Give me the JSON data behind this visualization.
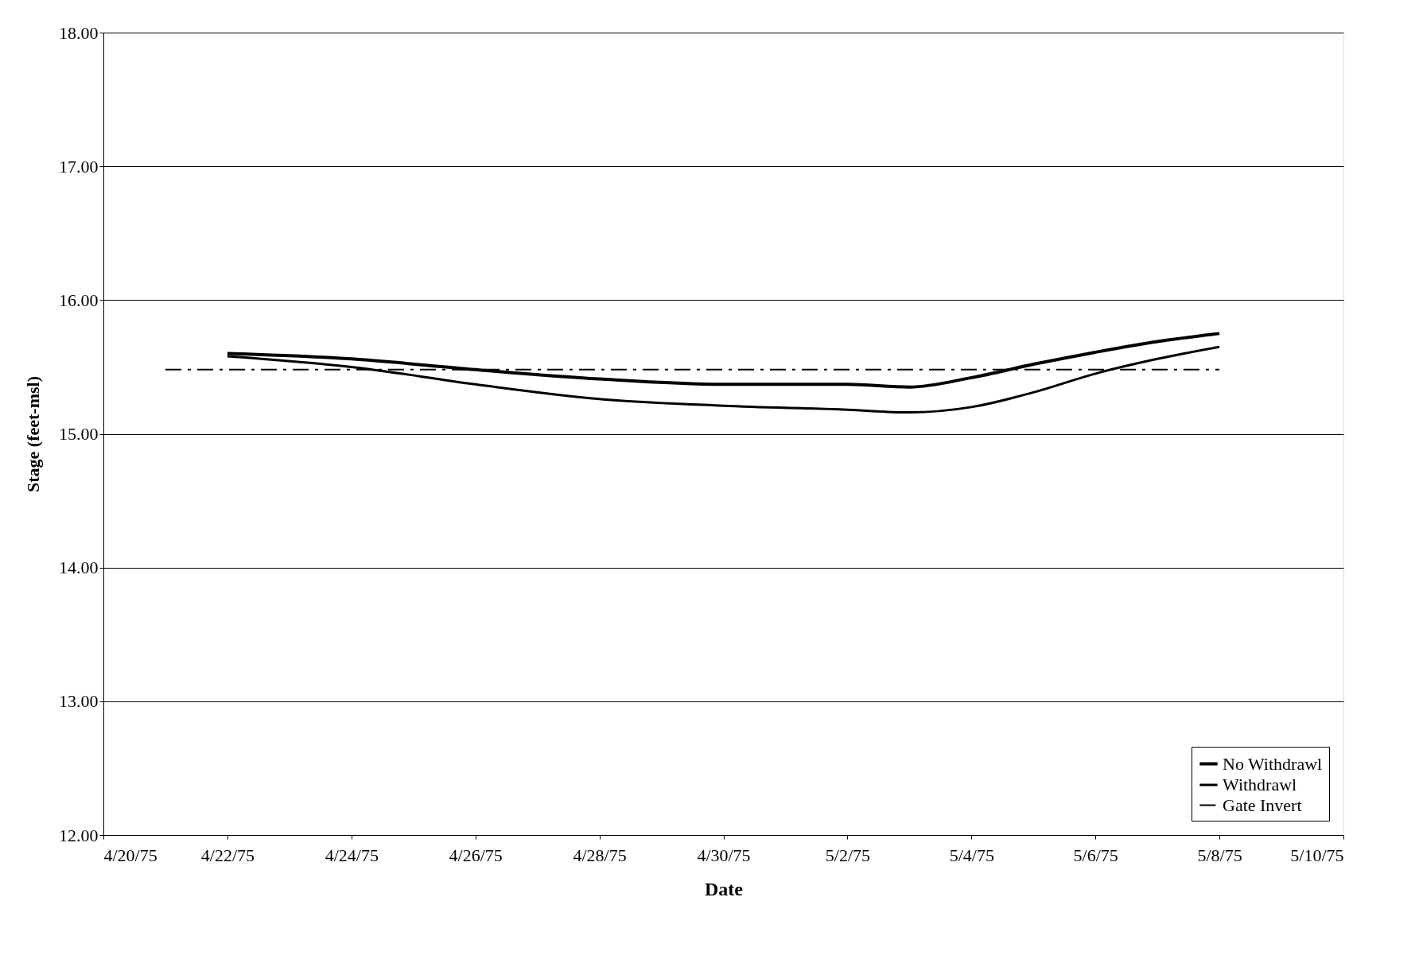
{
  "chart_data": {
    "type": "line",
    "xlabel": "Date",
    "ylabel": "Stage (feet-msl)",
    "xlim": [
      "1975-04-20",
      "1975-05-10"
    ],
    "xticks": [
      {
        "value": "1975-04-20",
        "label": "4/20/75"
      },
      {
        "value": "1975-04-22",
        "label": "4/22/75"
      },
      {
        "value": "1975-04-24",
        "label": "4/24/75"
      },
      {
        "value": "1975-04-26",
        "label": "4/26/75"
      },
      {
        "value": "1975-04-28",
        "label": "4/28/75"
      },
      {
        "value": "1975-04-30",
        "label": "4/30/75"
      },
      {
        "value": "1975-05-02",
        "label": "5/2/75"
      },
      {
        "value": "1975-05-04",
        "label": "5/4/75"
      },
      {
        "value": "1975-05-06",
        "label": "5/6/75"
      },
      {
        "value": "1975-05-08",
        "label": "5/8/75"
      },
      {
        "value": "1975-05-10",
        "label": "5/10/75"
      }
    ],
    "ylim": [
      12,
      18
    ],
    "yticks": [
      {
        "value": 12,
        "label": "12.00"
      },
      {
        "value": 13,
        "label": "13.00"
      },
      {
        "value": 14,
        "label": "14.00"
      },
      {
        "value": 15,
        "label": "15.00"
      },
      {
        "value": 16,
        "label": "16.00"
      },
      {
        "value": 17,
        "label": "17.00"
      },
      {
        "value": 18,
        "label": "18.00"
      }
    ],
    "grid": "y",
    "legend": "bottom right",
    "marker": "none",
    "series": [
      {
        "name": "No Withdrawl",
        "color": "#000000",
        "line_style": "solid",
        "x": [
          "1975-04-22",
          "1975-04-24",
          "1975-04-26",
          "1975-04-28",
          "1975-04-30",
          "1975-05-02",
          "1975-05-03",
          "1975-05-04",
          "1975-05-05",
          "1975-05-06",
          "1975-05-07",
          "1975-05-08"
        ],
        "values": [
          15.6,
          15.56,
          15.48,
          15.41,
          15.37,
          15.37,
          15.35,
          15.42,
          15.52,
          15.61,
          15.69,
          15.75
        ]
      },
      {
        "name": "Withdrawl",
        "color": "#000000",
        "line_style": "solid",
        "x": [
          "1975-04-22",
          "1975-04-24",
          "1975-04-26",
          "1975-04-28",
          "1975-04-30",
          "1975-05-02",
          "1975-05-03",
          "1975-05-04",
          "1975-05-05",
          "1975-05-06",
          "1975-05-07",
          "1975-05-08"
        ],
        "values": [
          15.58,
          15.5,
          15.37,
          15.26,
          15.21,
          15.18,
          15.16,
          15.2,
          15.31,
          15.45,
          15.56,
          15.65
        ]
      },
      {
        "name": "Gate Invert",
        "color": "#000000",
        "line_style": "dashed",
        "x": [
          "1975-04-21",
          "1975-05-08"
        ],
        "values": [
          15.48,
          15.48
        ]
      }
    ]
  }
}
